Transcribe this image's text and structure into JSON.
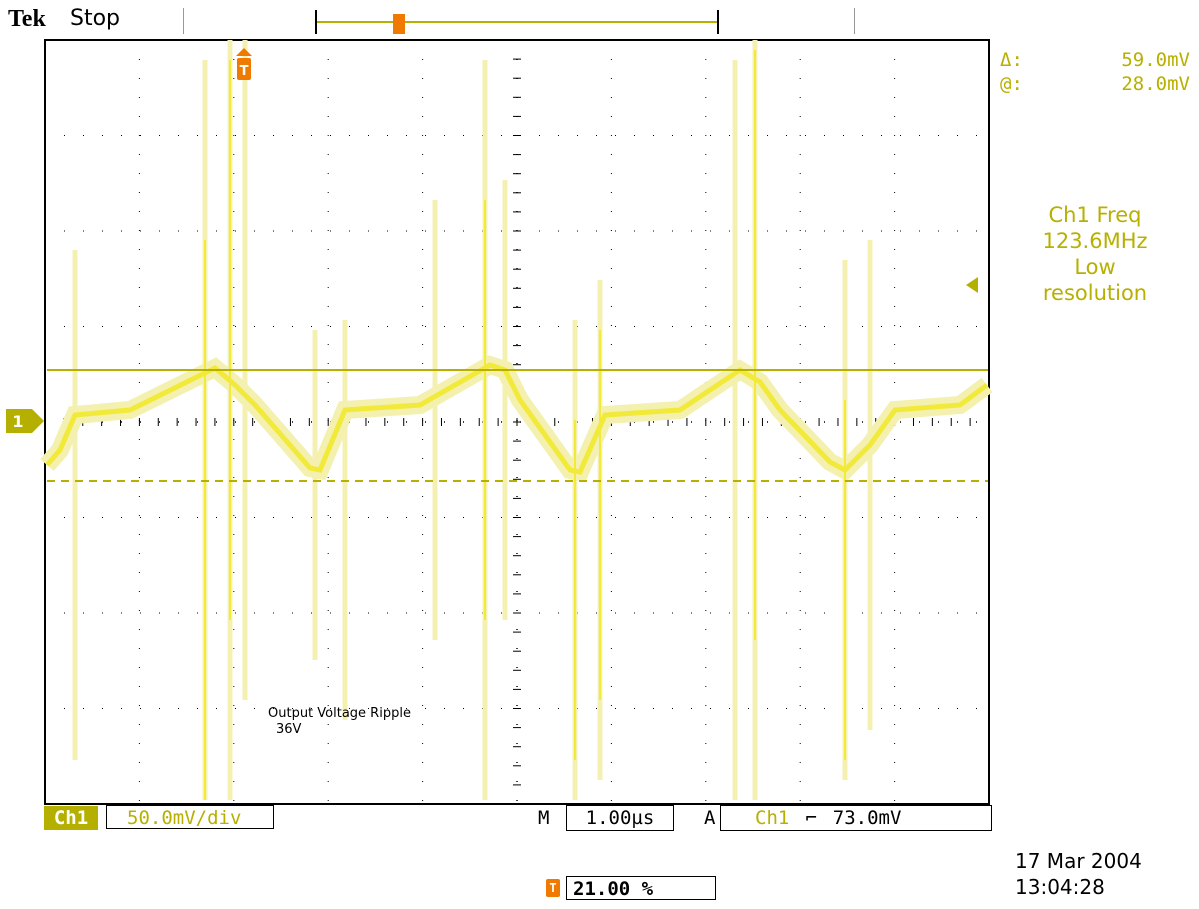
{
  "header": {
    "brand": "Tek",
    "acq_state": "Stop"
  },
  "measurements": {
    "delta_label": "Δ:",
    "delta_value": "59.0mV",
    "at_label": "@:",
    "at_value": "28.0mV",
    "freq_title": "Ch1 Freq",
    "freq_value": "123.6MHz",
    "freq_note1": "Low",
    "freq_note2": "resolution"
  },
  "markers": {
    "trigger_icon": "trigger-position-icon",
    "channel1_marker": "1",
    "trigger_level_icon": "trigger-level-arrow-icon"
  },
  "annotation": {
    "line1": "Output Voltage Ripple",
    "line2": "36V"
  },
  "bottom_bar": {
    "channel_label": "Ch1",
    "volts_per_div": "50.0mV/div",
    "time_prefix": "M",
    "time_per_div": "1.00µs",
    "trigger_mode": "A",
    "trigger_source": "Ch1",
    "trigger_slope": "⌐",
    "trigger_level": "73.0mV",
    "trigger_position": "21.00 %",
    "date": "17 Mar 2004",
    "time": "13:04:28"
  },
  "colors": {
    "trace": "#f2ea3a",
    "trace_faint": "#f4f0b0",
    "cursor": "#b8b000",
    "trigger": "#f07a00",
    "grid": "#000000"
  }
}
